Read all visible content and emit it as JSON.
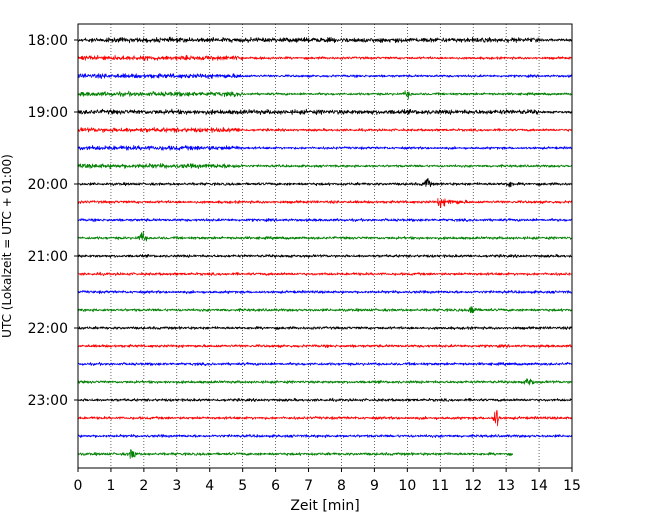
{
  "chart_data": {
    "type": "line",
    "title": "",
    "xlabel": "Zeit  [min]",
    "ylabel": "UTC (Lokalzeit = UTC + 01:00)",
    "xlim": [
      0,
      15
    ],
    "x_ticks": [
      "0",
      "1",
      "2",
      "3",
      "4",
      "5",
      "6",
      "7",
      "8",
      "9",
      "10",
      "11",
      "12",
      "13",
      "14",
      "15"
    ],
    "y_ticks": [
      "18:00",
      "19:00",
      "20:00",
      "21:00",
      "22:00",
      "23:00"
    ],
    "vertical_grid": "dotted",
    "legend": "none",
    "trace_colors": [
      "#000000",
      "#ff0000",
      "#0000ff",
      "#008000"
    ],
    "traces": [
      {
        "start": "18:00",
        "end_min": 15,
        "color": "#000000",
        "amplitude": "high",
        "amplitude_change_min": 14
      },
      {
        "start": "18:15",
        "end_min": 15,
        "color": "#ff0000",
        "amplitude": "high",
        "amplitude_change_min": 5
      },
      {
        "start": "18:30",
        "end_min": 15,
        "color": "#0000ff",
        "amplitude": "high",
        "amplitude_change_min": 5
      },
      {
        "start": "18:45",
        "end_min": 15,
        "color": "#008000",
        "amplitude": "high",
        "amplitude_change_min": 5,
        "events": [
          {
            "min": 10.0,
            "size": "small"
          }
        ]
      },
      {
        "start": "19:00",
        "end_min": 15,
        "color": "#000000",
        "amplitude": "high",
        "amplitude_change_min": 14
      },
      {
        "start": "19:15",
        "end_min": 15,
        "color": "#ff0000",
        "amplitude": "high",
        "amplitude_change_min": 5
      },
      {
        "start": "19:30",
        "end_min": 15,
        "color": "#0000ff",
        "amplitude": "high",
        "amplitude_change_min": 5
      },
      {
        "start": "19:45",
        "end_min": 15,
        "color": "#008000",
        "amplitude": "high",
        "amplitude_change_min": 5
      },
      {
        "start": "20:00",
        "end_min": 15,
        "color": "#000000",
        "amplitude": "medium",
        "events": [
          {
            "min": 10.6,
            "size": "medium"
          },
          {
            "min": 13.1,
            "size": "small"
          }
        ]
      },
      {
        "start": "20:15",
        "end_min": 15,
        "color": "#ff0000",
        "amplitude": "medium",
        "events": [
          {
            "min": 11.0,
            "size": "burst"
          }
        ]
      },
      {
        "start": "20:30",
        "end_min": 15,
        "color": "#0000ff",
        "amplitude": "medium"
      },
      {
        "start": "20:45",
        "end_min": 15,
        "color": "#008000",
        "amplitude": "medium",
        "events": [
          {
            "min": 1.95,
            "size": "medium"
          }
        ]
      },
      {
        "start": "21:00",
        "end_min": 15,
        "color": "#000000",
        "amplitude": "medium"
      },
      {
        "start": "21:15",
        "end_min": 15,
        "color": "#ff0000",
        "amplitude": "medium"
      },
      {
        "start": "21:30",
        "end_min": 15,
        "color": "#0000ff",
        "amplitude": "medium"
      },
      {
        "start": "21:45",
        "end_min": 15,
        "color": "#008000",
        "amplitude": "medium",
        "events": [
          {
            "min": 12.0,
            "size": "medium"
          }
        ]
      },
      {
        "start": "22:00",
        "end_min": 15,
        "color": "#000000",
        "amplitude": "medium"
      },
      {
        "start": "22:15",
        "end_min": 15,
        "color": "#ff0000",
        "amplitude": "medium"
      },
      {
        "start": "22:30",
        "end_min": 15,
        "color": "#0000ff",
        "amplitude": "medium"
      },
      {
        "start": "22:45",
        "end_min": 15,
        "color": "#008000",
        "amplitude": "medium",
        "events": [
          {
            "min": 13.7,
            "size": "medium"
          }
        ]
      },
      {
        "start": "23:00",
        "end_min": 15,
        "color": "#000000",
        "amplitude": "medium"
      },
      {
        "start": "23:15",
        "end_min": 15,
        "color": "#ff0000",
        "amplitude": "medium",
        "events": [
          {
            "min": 12.7,
            "size": "large"
          }
        ]
      },
      {
        "start": "23:30",
        "end_min": 15,
        "color": "#0000ff",
        "amplitude": "medium"
      },
      {
        "start": "23:45",
        "end_min": 13.2,
        "color": "#008000",
        "amplitude": "medium",
        "events": [
          {
            "min": 1.65,
            "size": "medium"
          }
        ]
      }
    ]
  }
}
